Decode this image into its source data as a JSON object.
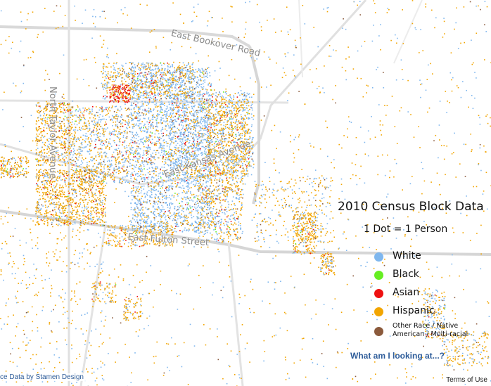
{
  "map": {
    "streets": {
      "bookover": "East Bookover Road",
      "taylor": "North Taylor Avenue",
      "kansas": "East Kansas Avenue",
      "fulton": "East Fulton Street"
    }
  },
  "legend": {
    "title": "2010 Census Block Data",
    "subtitle": "1 Dot = 1 Person",
    "items": [
      {
        "label": "White",
        "color": "#7fb7ee"
      },
      {
        "label": "Black",
        "color": "#66ee22"
      },
      {
        "label": "Asian",
        "color": "#ee1111"
      },
      {
        "label": "Hispanic",
        "color": "#f2a500"
      },
      {
        "label": "Other Race / Native American / Multi-racial",
        "color": "#8b5a3c"
      }
    ]
  },
  "links": {
    "info": "What am I looking at...?",
    "attribution": "ce Data by Stamen Design",
    "terms": "Terms of Use"
  }
}
